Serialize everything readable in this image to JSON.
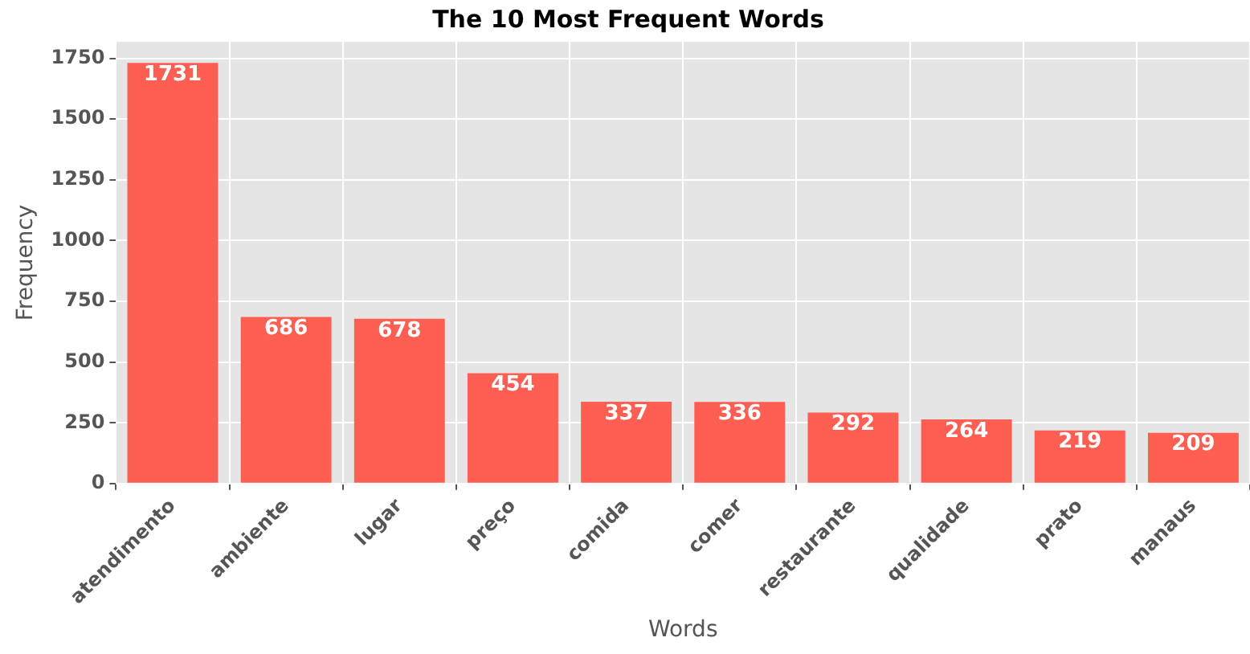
{
  "chart_data": {
    "type": "bar",
    "title": "The 10 Most Frequent Words",
    "xlabel": "Words",
    "ylabel": "Frequency",
    "categories": [
      "atendimento",
      "ambiente",
      "lugar",
      "preço",
      "comida",
      "comer",
      "restaurante",
      "qualidade",
      "prato",
      "manaus"
    ],
    "values": [
      1731,
      686,
      678,
      454,
      337,
      336,
      292,
      264,
      219,
      209
    ],
    "color": "#ff5e52",
    "ylim": [
      0,
      1818
    ],
    "yticks": [
      0,
      250,
      500,
      750,
      1000,
      1250,
      1500,
      1750
    ],
    "grid": true,
    "data_labels": true,
    "legend": false
  }
}
